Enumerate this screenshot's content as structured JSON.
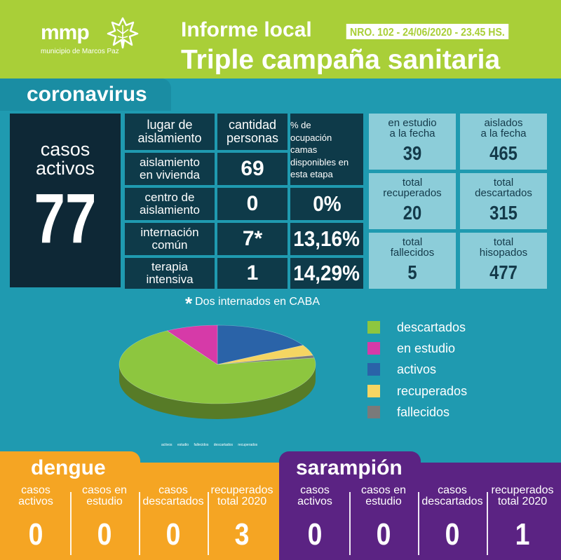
{
  "header": {
    "logo_text": "mmp",
    "logo_subtitle": "municipio de Marcos Paz",
    "title": "Informe local",
    "badge": "NRO. 102 - 24/06/2020 - 23.45 HS.",
    "subtitle": "Triple campaña sanitaria",
    "bg_color": "#a9cf38"
  },
  "coronavirus": {
    "section_title": "coronavirus",
    "active_cases": {
      "label_line1": "casos",
      "label_line2": "activos",
      "value": "77"
    },
    "table": {
      "headers": {
        "place": [
          "lugar de",
          "aislamiento"
        ],
        "count": [
          "cantidad",
          "personas"
        ],
        "occupancy": [
          "% de",
          "ocupación",
          "camas",
          "disponibles en",
          "esta etapa"
        ]
      },
      "rows": [
        {
          "place": [
            "aislamiento",
            "en vivienda"
          ],
          "count": "69",
          "pct": ""
        },
        {
          "place": [
            "centro de",
            "aislamiento"
          ],
          "count": "0",
          "pct": "0%"
        },
        {
          "place": [
            "internación",
            "común"
          ],
          "count": "7*",
          "pct": "13,16%"
        },
        {
          "place": [
            "terapia",
            "intensiva"
          ],
          "count": "1",
          "pct": "14,29%"
        }
      ]
    },
    "stats": [
      {
        "label": [
          "en estudio",
          "a la fecha"
        ],
        "value": "39"
      },
      {
        "label": [
          "aislados",
          "a la fecha"
        ],
        "value": "465"
      },
      {
        "label": [
          "total",
          "recuperados"
        ],
        "value": "20"
      },
      {
        "label": [
          "total",
          "descartados"
        ],
        "value": "315"
      },
      {
        "label": [
          "total",
          "fallecidos"
        ],
        "value": "5"
      },
      {
        "label": [
          "total",
          "hisopados"
        ],
        "value": "477"
      }
    ],
    "footnote": "Dos internados en CABA",
    "footnote_star": "*"
  },
  "chart_data": {
    "type": "pie",
    "categories": [
      "descartados",
      "en estudio",
      "activos",
      "recuperados",
      "fallecidos"
    ],
    "values": [
      315,
      39,
      77,
      20,
      5
    ],
    "colors": [
      "#8dc63f",
      "#d63aa8",
      "#2a63a8",
      "#f5d562",
      "#7a7a7a"
    ],
    "legend_position": "right",
    "mini_legend": [
      "activos",
      "estudio",
      "fallecidos",
      "descartados",
      "recuperados"
    ]
  },
  "dengue": {
    "title": "dengue",
    "color": "#f5a523",
    "columns": [
      {
        "label": [
          "casos",
          "activos"
        ],
        "value": "0"
      },
      {
        "label": [
          "casos en",
          "estudio"
        ],
        "value": "0"
      },
      {
        "label": [
          "casos",
          "descartados"
        ],
        "value": "0"
      },
      {
        "label": [
          "recuperados",
          "total 2020"
        ],
        "value": "3"
      }
    ]
  },
  "sarampion": {
    "title": "sarampión",
    "color": "#5b2383",
    "columns": [
      {
        "label": [
          "casos",
          "activos"
        ],
        "value": "0"
      },
      {
        "label": [
          "casos en",
          "estudio"
        ],
        "value": "0"
      },
      {
        "label": [
          "casos",
          "descartados"
        ],
        "value": "0"
      },
      {
        "label": [
          "recuperados",
          "total 2020"
        ],
        "value": "1"
      }
    ]
  }
}
